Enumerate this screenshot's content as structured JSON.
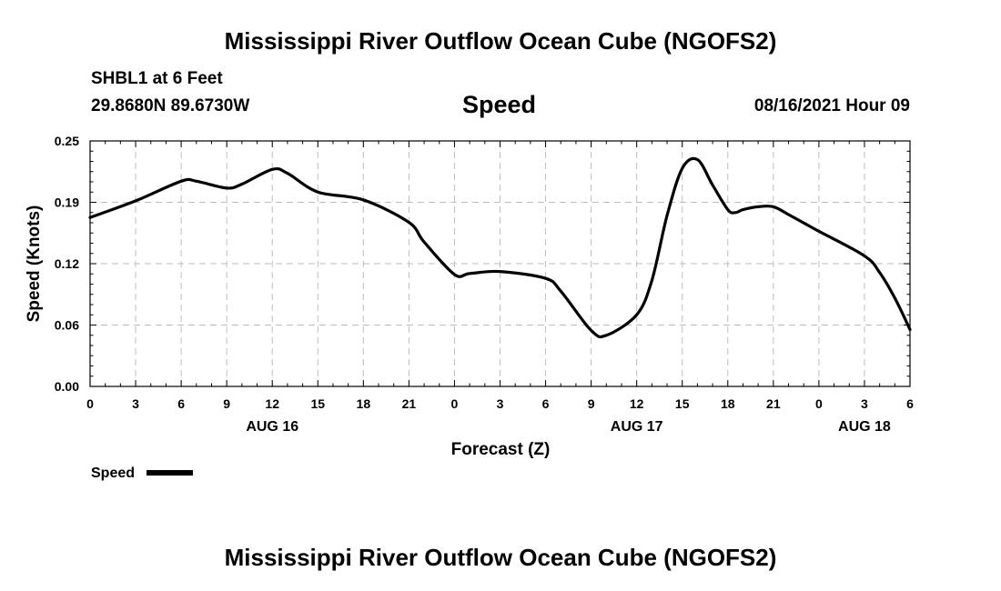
{
  "header": {
    "title": "Mississippi River Outflow Ocean Cube (NGOFS2)",
    "station": "SHBL1 at 6 Feet",
    "coordinates": "29.8680N  89.6730W",
    "variable": "Speed",
    "datetime": "08/16/2021 Hour 09"
  },
  "footer": {
    "title": "Mississippi River Outflow Ocean Cube (NGOFS2)"
  },
  "chart_data": {
    "type": "line",
    "title": "Speed",
    "xlabel": "Forecast (Z)",
    "ylabel": "Speed (Knots)",
    "xlim": [
      0,
      54
    ],
    "ylim": [
      0.0,
      0.25
    ],
    "grid": true,
    "legend": "bottom-left",
    "x_tick_labels": [
      "0",
      "3",
      "6",
      "9",
      "12",
      "15",
      "18",
      "21",
      "0",
      "3",
      "6",
      "9",
      "12",
      "15",
      "18",
      "21",
      "0",
      "3",
      "6"
    ],
    "y_tick_labels": [
      "0.00",
      "0.06",
      "0.12",
      "0.19",
      "0.25"
    ],
    "day_labels": [
      {
        "label": "AUG 16",
        "x": 12
      },
      {
        "label": "AUG 17",
        "x": 36
      },
      {
        "label": "AUG 18",
        "x": 51
      }
    ],
    "series": [
      {
        "name": "Speed",
        "color": "#000000",
        "x": [
          0,
          3,
          6,
          7,
          9,
          10,
          12,
          13,
          15,
          18,
          21,
          22,
          24,
          25,
          27,
          30,
          31,
          33,
          34,
          36,
          37,
          38,
          39,
          40,
          41,
          42,
          42.5,
          43,
          44,
          45,
          46,
          48,
          51,
          52,
          53,
          54
        ],
        "values": [
          0.172,
          0.189,
          0.209,
          0.209,
          0.202,
          0.206,
          0.221,
          0.217,
          0.198,
          0.19,
          0.167,
          0.147,
          0.114,
          0.115,
          0.117,
          0.11,
          0.097,
          0.057,
          0.052,
          0.073,
          0.108,
          0.174,
          0.222,
          0.231,
          0.205,
          0.18,
          0.177,
          0.18,
          0.183,
          0.183,
          0.175,
          0.158,
          0.133,
          0.116,
          0.09,
          0.058
        ]
      }
    ]
  }
}
